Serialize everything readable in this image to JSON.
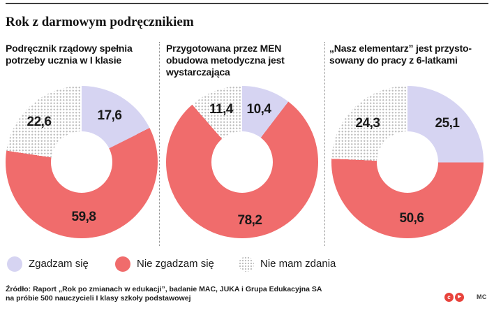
{
  "page": {
    "title": "Rok z darmowym podręcznikiem"
  },
  "charts": [
    {
      "title": "Podręcznik rządowy spełnia\npotrzeby ucznia w I klasie",
      "values": {
        "agree": "17,6",
        "disagree": "59,8",
        "neutral": "22,6"
      }
    },
    {
      "title": "Przygotowana przez MEN\nobudowa metodyczna jest\nwystarczająca",
      "values": {
        "agree": "10,4",
        "disagree": "78,2",
        "neutral": "11,4"
      }
    },
    {
      "title": "„Nasz elementarz” jest przysto-\nsowany do pracy z 6-latkami",
      "values": {
        "agree": "25,1",
        "disagree": "50,6",
        "neutral": "24,3"
      }
    }
  ],
  "chart_data": [
    {
      "type": "pie",
      "subtype": "donut",
      "title": "Podręcznik rządowy spełnia potrzeby ucznia w I klasie",
      "categories": [
        "Zgadzam się",
        "Nie zgadzam się",
        "Nie mam zdania"
      ],
      "values": [
        17.6,
        59.8,
        22.6
      ],
      "unit": "percent",
      "start_angle": "top",
      "direction": "clockwise",
      "legend_position": "bottom"
    },
    {
      "type": "pie",
      "subtype": "donut",
      "title": "Przygotowana przez MEN obudowa metodyczna jest wystarczająca",
      "categories": [
        "Zgadzam się",
        "Nie zgadzam się",
        "Nie mam zdania"
      ],
      "values": [
        10.4,
        78.2,
        11.4
      ],
      "unit": "percent",
      "start_angle": "top",
      "direction": "clockwise",
      "legend_position": "bottom"
    },
    {
      "type": "pie",
      "subtype": "donut",
      "title": "„Nasz elementarz” jest przystosowany do pracy z 6-latkami",
      "categories": [
        "Zgadzam się",
        "Nie zgadzam się",
        "Nie mam zdania"
      ],
      "values": [
        25.1,
        50.6,
        24.3
      ],
      "unit": "percent",
      "start_angle": "top",
      "direction": "clockwise",
      "legend_position": "bottom"
    }
  ],
  "legend": [
    {
      "label": "Zgadzam się",
      "swatch": "agree"
    },
    {
      "label": "Nie zgadzam się",
      "swatch": "disagree"
    },
    {
      "label": "Nie mam zdania",
      "swatch": "neutral"
    }
  ],
  "footer": {
    "line1": "Źródło: Raport „Rok po zmianach w edukacji”, badanie MAC, JUKA i Grupa Edukacyjna SA",
    "line2": "na próbie 500 nauczycieli I klasy szkoły podstawowej",
    "credit": "MC"
  },
  "icons": {
    "license_circle_1": "c",
    "license_circle_2": "▶"
  },
  "colors": {
    "agree": "#d6d4f2",
    "disagree": "#f06c6c",
    "dot": "#bdbdbd",
    "icon_red": "#e8433c",
    "rule": "#3f3f3f"
  }
}
